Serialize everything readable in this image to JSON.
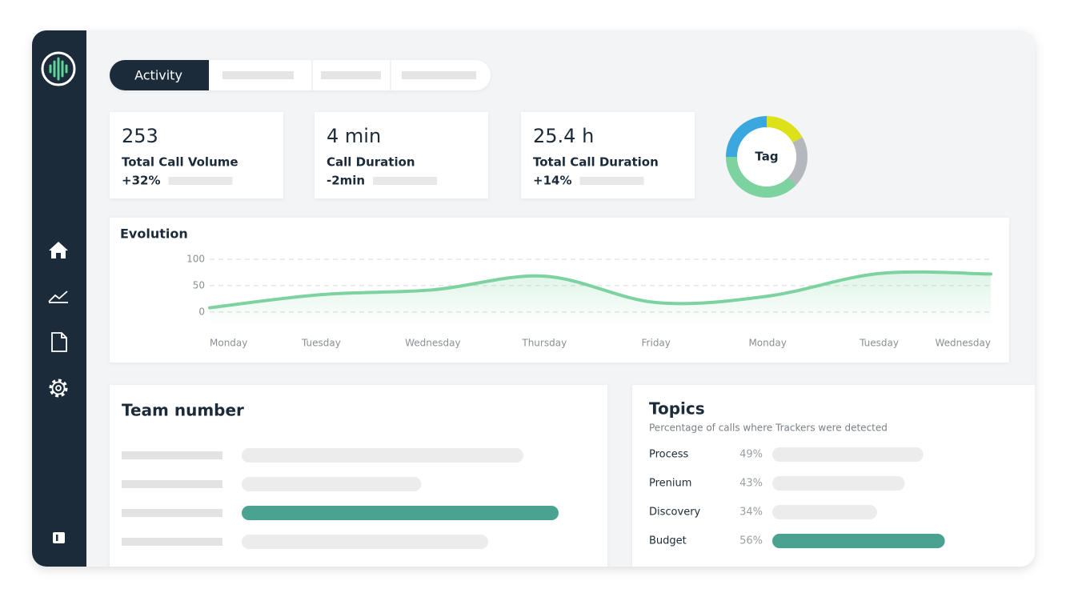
{
  "tabs": {
    "active": "Activity"
  },
  "stats": [
    {
      "value": "253",
      "label": "Total Call Volume",
      "change": "+32%"
    },
    {
      "value": "4 min",
      "label": "Call Duration",
      "change": "-2min"
    },
    {
      "value": "25.4 h",
      "label": "Total Call Duration",
      "change": "+14%"
    }
  ],
  "chart_data": [
    {
      "type": "pie",
      "title": "Tag",
      "values": [
        17,
        20,
        38,
        25
      ],
      "colors": [
        "#dde11a",
        "#b4b7bb",
        "#7dd3a0",
        "#3aa7de"
      ]
    },
    {
      "type": "line",
      "title": "Evolution",
      "categories": [
        "Monday",
        "Tuesday",
        "Wednesday",
        "Thursday",
        "Friday",
        "Monday",
        "Tuesday",
        "Wednesday"
      ],
      "values": [
        8,
        33,
        42,
        68,
        18,
        30,
        73,
        72
      ],
      "color": "#7dd3a0",
      "ylim": [
        -20,
        100
      ],
      "yticks": [
        0,
        50,
        100
      ],
      "grid": true
    },
    {
      "type": "bar",
      "title": "Team number",
      "values": [
        80,
        51,
        90,
        70
      ],
      "xlim": [
        0,
        100
      ],
      "colors": [
        "#ececec",
        "#ececec",
        "#4aa391",
        "#ececec"
      ]
    },
    {
      "type": "bar",
      "title": "Topics",
      "subtitle": "Percentage of calls where Trackers were detected",
      "categories": [
        "Process",
        "Prenium",
        "Discovery",
        "Budget"
      ],
      "values": [
        49,
        43,
        34,
        56
      ],
      "value_labels": [
        "49%",
        "43%",
        "34%",
        "56%"
      ],
      "xlim": [
        0,
        100
      ],
      "colors": [
        "#ececec",
        "#ececec",
        "#ececec",
        "#4aa391"
      ]
    }
  ]
}
